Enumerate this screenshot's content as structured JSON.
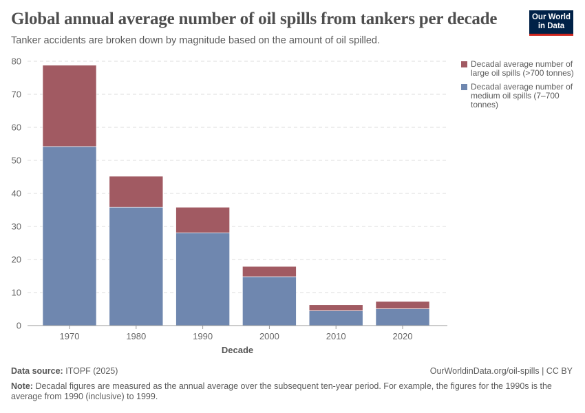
{
  "header": {
    "title": "Global annual average number of oil spills from tankers per decade",
    "subtitle": "Tanker accidents are broken down by magnitude based on the amount of oil spilled.",
    "logo_text": "Our World in Data"
  },
  "chart_data": {
    "type": "bar",
    "stacked": true,
    "categories": [
      "1970",
      "1980",
      "1990",
      "2000",
      "2010",
      "2020"
    ],
    "xlabel": "Decade",
    "ylabel": "",
    "ylim": [
      0,
      80
    ],
    "yticks": [
      0,
      10,
      20,
      30,
      40,
      50,
      60,
      70,
      80
    ],
    "grid": true,
    "legend_position": "right",
    "series": [
      {
        "name": "Decadal average number of medium oil spills (7–700 tonnes)",
        "color": "#6f87af",
        "values": [
          54.2,
          35.8,
          28.1,
          14.8,
          4.5,
          5.1
        ]
      },
      {
        "name": "Decadal average number of large oil spills (>700 tonnes)",
        "color": "#a15a62",
        "values": [
          24.6,
          9.4,
          7.7,
          3.1,
          1.8,
          2.2
        ]
      }
    ]
  },
  "footer": {
    "source_label": "Data source:",
    "source": "ITOPF (2025)",
    "url": "OurWorldinData.org/oil-spills | CC BY",
    "note_label": "Note:",
    "note": "Decadal figures are measured as the annual average over the subsequent ten-year period. For example, the figures for the 1990s is the average from 1990 (inclusive) to 1999."
  }
}
